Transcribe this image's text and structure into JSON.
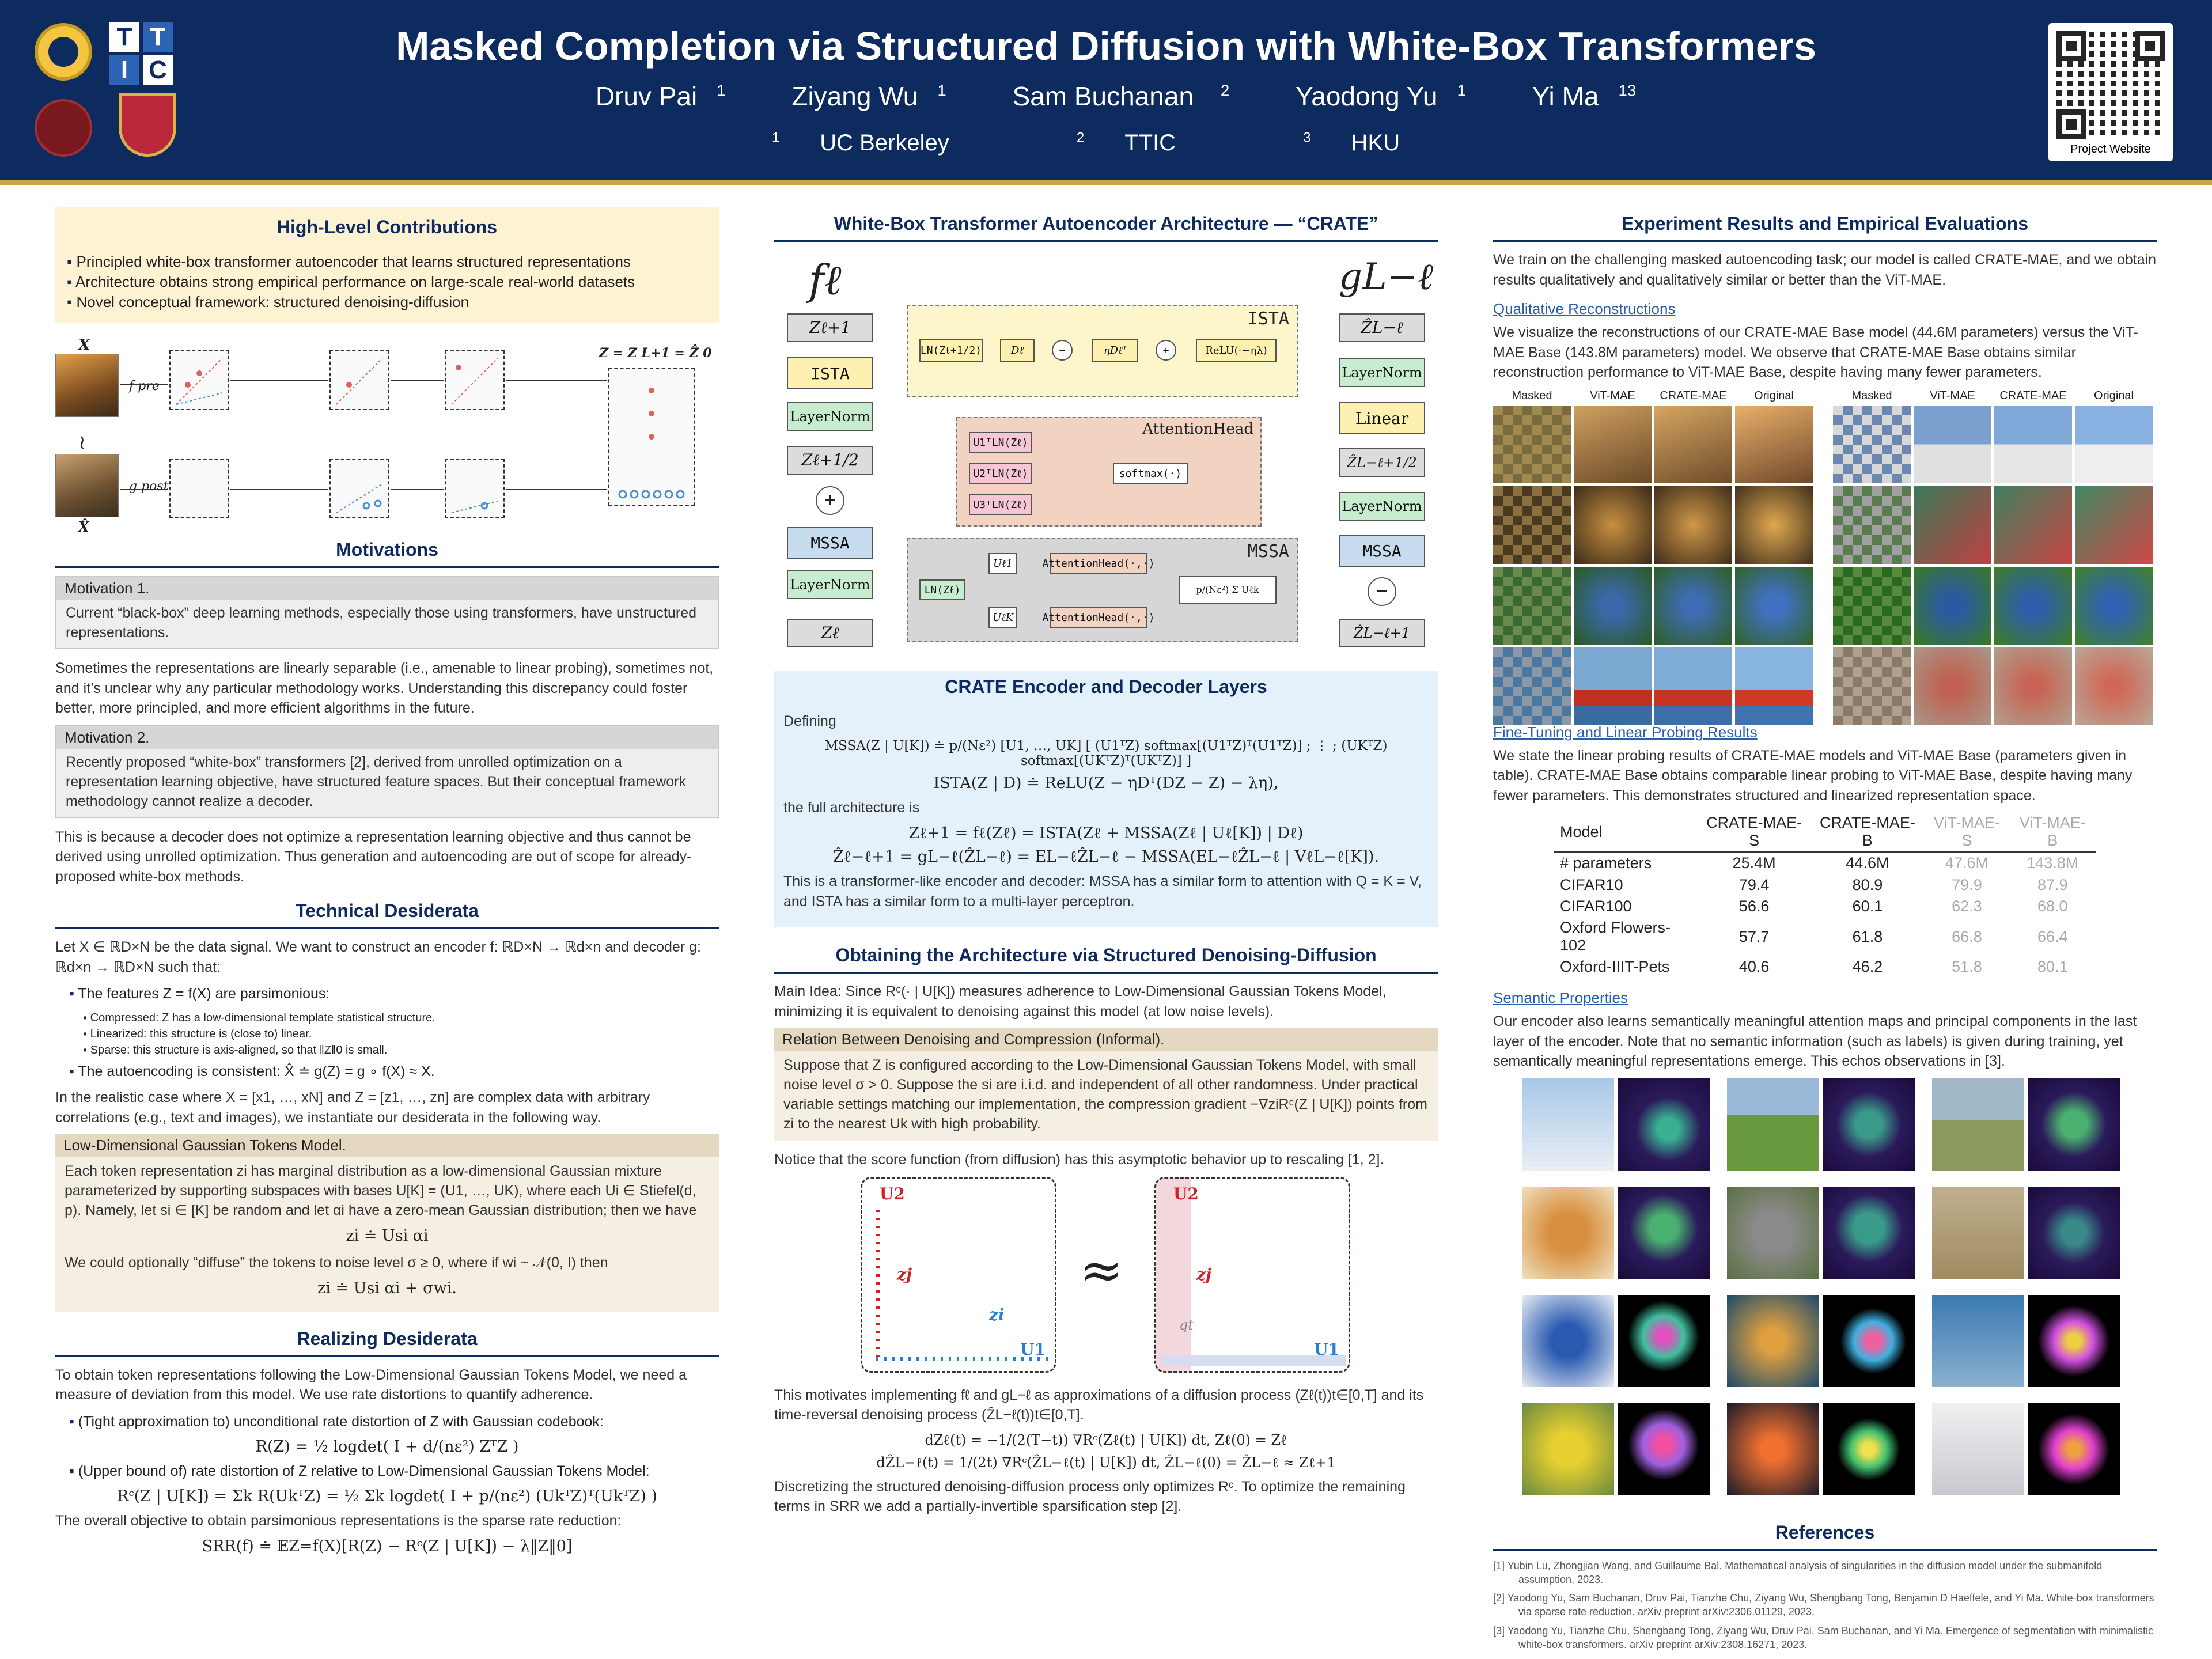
{
  "header": {
    "title": "Masked Completion via Structured Diffusion with White-Box Transformers",
    "authors": [
      {
        "name": "Druv Pai",
        "sup": "1"
      },
      {
        "name": "Ziyang Wu",
        "sup": "1"
      },
      {
        "name": "Sam Buchanan",
        "sup": "2"
      },
      {
        "name": "Yaodong Yu",
        "sup": "1"
      },
      {
        "name": "Yi Ma",
        "sup": "13"
      }
    ],
    "affiliations": [
      {
        "sup": "1",
        "name": "UC Berkeley"
      },
      {
        "sup": "2",
        "name": "TTIC"
      },
      {
        "sup": "3",
        "name": "HKU"
      }
    ],
    "ttic_letters": [
      "T",
      "T",
      "I",
      "C"
    ],
    "qr_label": "Project Website"
  },
  "col1": {
    "contrib_title": "High-Level Contributions",
    "contributions": [
      "Principled white-box transformer autoencoder that learns structured representations",
      "Architecture obtains strong empirical performance on large-scale real-world datasets",
      "Novel conceptual framework: structured denoising-diffusion"
    ],
    "diagram_labels": {
      "x": "X",
      "xhat": "X̂",
      "fpre": "f pre",
      "gpost": "g post",
      "zfinal": "Z = Z L+1 = Ẑ 0",
      "approx": "≀"
    },
    "motivations_title": "Motivations",
    "motivation1_head": "Motivation 1.",
    "motivation1_body": "Current “black-box” deep learning methods, especially those using transformers, have unstructured representations.",
    "motivation1_after": "Sometimes the representations are linearly separable (i.e., amenable to linear probing), sometimes not, and it’s unclear why any particular methodology works. Understanding this discrepancy could foster better, more principled, and more efficient algorithms in the future.",
    "motivation2_head": "Motivation 2.",
    "motivation2_body": "Recently proposed “white-box” transformers [2], derived from unrolled optimization on a representation learning objective, have structured feature spaces. But their conceptual framework methodology cannot realize a decoder.",
    "motivation2_after": "This is because a decoder does not optimize a representation learning objective and thus cannot be derived using unrolled optimization. Thus generation and autoencoding are out of scope for already-proposed white-box methods.",
    "tech_title": "Technical Desiderata",
    "tech_intro": "Let X ∈ ℝD×N be the data signal. We want to construct an encoder f: ℝD×N → ℝd×n and decoder g: ℝd×n → ℝD×N such that:",
    "tech_b1": "The features Z = f(X) are parsimonious:",
    "tech_mini": [
      "Compressed: Z has a low-dimensional template statistical structure.",
      "Linearized: this structure is (close to) linear.",
      "Sparse: this structure is axis-aligned, so that ‖Z‖0 is small."
    ],
    "tech_b2": "The autoencoding is consistent: X̂ ≐ g(Z) = g ∘ f(X) ≈ X.",
    "tech_after": "In the realistic case where X = [x1, …, xN] and Z = [z1, …, zn] are complex data with arbitrary correlations (e.g., text and images), we instantiate our desiderata in the following way.",
    "lowdim_head": "Low-Dimensional Gaussian Tokens Model.",
    "lowdim_body": "Each token representation zi has marginal distribution as a low-dimensional Gaussian mixture parameterized by supporting subspaces with bases U[K] = (U1, …, UK), where each Ui ∈ Stiefel(d, p). Namely, let si ∈ [K] be random and let αi have a zero-mean Gaussian distribution; then we have",
    "lowdim_eq1": "zi ≐ Usi αi",
    "lowdim_mid": "We could optionally “diffuse” the tokens to noise level σ ≥ 0, where if wi ~ 𝒩(0, I) then",
    "lowdim_eq2": "zi ≐ Usi αi + σwi.",
    "realize_title": "Realizing Desiderata",
    "realize_intro": "To obtain token representations following the Low-Dimensional Gaussian Tokens Model, we need a measure of deviation from this model. We use rate distortions to quantify adherence.",
    "realize_b1": "(Tight approximation to) unconditional rate distortion of Z with Gaussian codebook:",
    "realize_eq1": "R(Z) = ½ logdet( I + d/(nε²) ZᵀZ )",
    "realize_b2": "(Upper bound of) rate distortion of Z relative to Low-Dimensional Gaussian Tokens Model:",
    "realize_eq2": "Rᶜ(Z | U[K]) = Σk R(UkᵀZ) = ½ Σk logdet( I + p/(nε²) (UkᵀZ)ᵀ(UkᵀZ) )",
    "realize_after": "The overall objective to obtain parsimonious representations is the sparse rate reduction:",
    "realize_eq3": "SRR(f) ≐ 𝔼Z=f(X)[R(Z) − Rᶜ(Z | U[K]) − λ‖Z‖0]"
  },
  "col2": {
    "arch_title": "White-Box Transformer Autoencoder Architecture — “CRATE”",
    "f_label": "fℓ",
    "g_label": "gL−ℓ",
    "enc_blocks": [
      "Zℓ+1",
      "ISTA",
      "LayerNorm",
      "Zℓ+1/2",
      "MSSA",
      "LayerNorm",
      "Zℓ"
    ],
    "dec_blocks": [
      "ẐL−ℓ",
      "LayerNorm",
      "Linear",
      "ẐL−ℓ+1/2",
      "LayerNorm",
      "MSSA",
      "ẐL−ℓ+1"
    ],
    "ista_label": "ISTA",
    "ista_inner": [
      "LN(Zℓ+1/2)",
      "Dℓ",
      "−",
      "ηDℓᵀ",
      "+",
      "ReLU(·−ηλ)"
    ],
    "attn_label": "AttentionHead",
    "attn_inner": [
      "U1ᵀLN(Zℓ)",
      "U2ᵀLN(Zℓ)",
      "U3ᵀLN(Zℓ)",
      "softmax(·)"
    ],
    "mssa_label": "MSSA",
    "mssa_inner": [
      "LN(Zℓ)",
      "Uℓ1",
      "UℓK",
      "AttentionHead(·,·)",
      "AttentionHead(·,·)",
      "p/(Nε²) Σ Uℓk"
    ],
    "layers_title": "CRATE Encoder and Decoder Layers",
    "defining": "Defining",
    "mssa_eq": "MSSA(Z | U[K]) ≐ p/(Nε²) [U1, …, UK] [ (U1ᵀZ) softmax[(U1ᵀZ)ᵀ(U1ᵀZ)] ; ⋮ ; (UKᵀZ) softmax[(UKᵀZ)ᵀ(UKᵀZ)] ]",
    "ista_eq": "ISTA(Z | D) ≐ ReLU(Z − ηDᵀ(DZ − Z) − λη),",
    "full_arch": "the full architecture is",
    "full_eq1": "Zℓ+1 = fℓ(Zℓ) = ISTA(Zℓ + MSSA(Zℓ | Uℓ[K]) | Dℓ)",
    "full_eq2": "Ẑℓ−ℓ+1 = gL−ℓ(ẐL−ℓ) = EL−ℓẐL−ℓ − MSSA(EL−ℓẐL−ℓ | VℓL−ℓ[K]).",
    "layers_after": "This is a transformer-like encoder and decoder: MSSA has a similar form to attention with Q = K = V, and ISTA has a similar form to a multi-layer perceptron.",
    "denoise_title": "Obtaining the Architecture via Structured Denoising-Diffusion",
    "main_idea": "Main Idea: Since Rᶜ(· | U[K]) measures adherence to Low-Dimensional Gaussian Tokens Model, minimizing it is equivalent to denoising against this model (at low noise levels).",
    "relation_head": "Relation Between Denoising and Compression (Informal).",
    "relation_body": "Suppose that Z is configured according to the Low-Dimensional Gaussian Tokens Model, with small noise level σ > 0. Suppose the si are i.i.d. and independent of all other randomness. Under practical variable settings matching our implementation, the compression gradient −∇ziRᶜ(Z | U[K]) points from zi to the nearest Uk with high probability.",
    "notice": "Notice that the score function (from diffusion) has this asymptotic behavior up to rescaling [1, 2].",
    "score_labels": {
      "u2": "U2",
      "u1": "U1",
      "zj": "zj",
      "zi": "zi",
      "qt": "qt",
      "approx": "≈"
    },
    "motivates": "This motivates implementing fℓ and gL−ℓ as approximations of a diffusion process (Zℓ(t))t∈[0,T] and its time-reversal denoising process (ẐL−ℓ(t))t∈[0,T].",
    "sde1": "dZℓ(t) = −1/(2(T−t)) ∇Rᶜ(Zℓ(t) | U[K]) dt,      Zℓ(0) = Zℓ",
    "sde2": "dẐL−ℓ(t) = 1/(2t) ∇Rᶜ(ẐL−ℓ(t) | U[K]) dt,      ẐL−ℓ(0) = ẐL−ℓ ≈ Zℓ+1",
    "discretize": "Discretizing the structured denoising-diffusion process only optimizes Rᶜ. To optimize the remaining terms in SRR we add a partially-invertible sparsification step [2]."
  },
  "col3": {
    "exp_title": "Experiment Results and Empirical Evaluations",
    "exp_intro": "We train on the challenging masked autoencoding task; our model is called CRATE-MAE, and we obtain results qualitatively and qualitatively similar or better than the ViT-MAE.",
    "qual_title": "Qualitative Reconstructions",
    "qual_body": "We visualize the reconstructions of our CRATE-MAE Base model (44.6M parameters) versus the ViT-MAE Base (143.8M parameters) model. We observe that CRATE-MAE Base obtains similar reconstruction performance to ViT-MAE Base, despite having many fewer parameters.",
    "recon_cols": [
      "Masked",
      "ViT-MAE",
      "CRATE-MAE",
      "Original",
      "Masked",
      "ViT-MAE",
      "CRATE-MAE",
      "Original"
    ],
    "ft_title": "Fine-Tuning and Linear Probing Results",
    "ft_body": "We state the linear probing results of CRATE-MAE models and ViT-MAE Base (parameters given in table). CRATE-MAE Base obtains comparable linear probing to ViT-MAE Base, despite having many fewer parameters. This demonstrates structured and linearized representation space.",
    "table": {
      "headers": [
        "Model",
        "CRATE-MAE-S",
        "CRATE-MAE-B",
        "ViT-MAE-S",
        "ViT-MAE-B"
      ],
      "rows": [
        [
          "# parameters",
          "25.4M",
          "44.6M",
          "47.6M",
          "143.8M"
        ],
        [
          "CIFAR10",
          "79.4",
          "80.9",
          "79.9",
          "87.9"
        ],
        [
          "CIFAR100",
          "56.6",
          "60.1",
          "62.3",
          "68.0"
        ],
        [
          "Oxford Flowers-102",
          "57.7",
          "61.8",
          "66.8",
          "66.4"
        ],
        [
          "Oxford-IIIT-Pets",
          "40.6",
          "46.2",
          "51.8",
          "80.1"
        ]
      ]
    },
    "sem_title": "Semantic Properties",
    "sem_body": "Our encoder also learns semantically meaningful attention maps and principal components in the last layer of the encoder. Note that no semantic information (such as labels) is given during training, yet semantically meaningful representations emerge. This echos observations in [3].",
    "refs_title": "References",
    "refs": [
      "[1] Yubin Lu, Zhongjian Wang, and Guillaume Bal. Mathematical analysis of singularities in the diffusion model under the submanifold assumption, 2023.",
      "[2] Yaodong Yu, Sam Buchanan, Druv Pai, Tianzhe Chu, Ziyang Wu, Shengbang Tong, Benjamin D Haeffele, and Yi Ma. White-box transformers via sparse rate reduction. arXiv preprint arXiv:2306.01129, 2023.",
      "[3] Yaodong Yu, Tianzhe Chu, Shengbang Tong, Ziyang Wu, Druv Pai, Sam Buchanan, and Yi Ma. Emergence of segmentation with minimalistic white-box transformers. arXiv preprint arXiv:2308.16271, 2023."
    ]
  }
}
